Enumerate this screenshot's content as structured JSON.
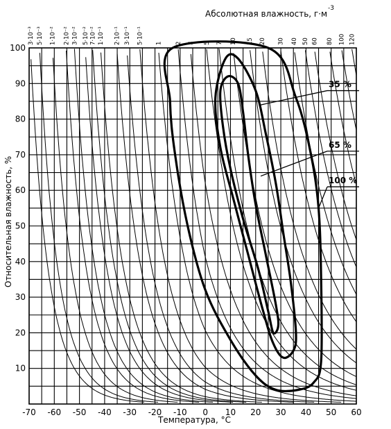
{
  "chart_data": {
    "type": "line",
    "title": "Абсолютная влажность, г·м",
    "title_superscript": "-3",
    "xlabel": "Температура, °C",
    "ylabel": "Относительная влажность, %",
    "xlim": [
      -70,
      60
    ],
    "ylim": [
      0,
      100
    ],
    "x_ticks": [
      "-70",
      "-60",
      "-50",
      "-40",
      "-30",
      "-20",
      "-10",
      "0",
      "10",
      "20",
      "30",
      "40",
      "50",
      "60"
    ],
    "y_ticks": [
      "10",
      "20",
      "30",
      "40",
      "50",
      "60",
      "70",
      "80",
      "90",
      "100"
    ],
    "grid": true,
    "absolute_humidity_lines": [
      {
        "label": "3·10⁻³",
        "value": 0.003
      },
      {
        "label": "5·10⁻³",
        "value": 0.005
      },
      {
        "label": "1·10⁻²",
        "value": 0.01
      },
      {
        "label": "2·10⁻²",
        "value": 0.02
      },
      {
        "label": "3·10⁻²",
        "value": 0.03
      },
      {
        "label": "5·10⁻²",
        "value": 0.05
      },
      {
        "label": "7·10⁻²",
        "value": 0.07
      },
      {
        "label": "1·10⁻¹",
        "value": 0.1
      },
      {
        "label": "2·10⁻¹",
        "value": 0.2
      },
      {
        "label": "3·10⁻¹",
        "value": 0.3
      },
      {
        "label": "5·10⁻¹",
        "value": 0.5
      },
      {
        "label": "1",
        "value": 1
      },
      {
        "label": "2",
        "value": 2
      },
      {
        "label": "3",
        "value": 3
      },
      {
        "label": "5",
        "value": 5
      },
      {
        "label": "7",
        "value": 7
      },
      {
        "label": "10",
        "value": 10
      },
      {
        "label": "15",
        "value": 15
      },
      {
        "label": "20",
        "value": 20
      },
      {
        "label": "30",
        "value": 30
      },
      {
        "label": "40",
        "value": 40
      },
      {
        "label": "50",
        "value": 50
      },
      {
        "label": "60",
        "value": 60
      },
      {
        "label": "80",
        "value": 80
      },
      {
        "label": "100",
        "value": 100
      },
      {
        "label": "120",
        "value": 120
      }
    ],
    "series": [
      {
        "name": "100 %",
        "points": [
          [
            -13,
            100
          ],
          [
            25,
            100
          ],
          [
            36,
            86
          ],
          [
            42,
            70
          ],
          [
            45,
            55
          ],
          [
            46,
            35
          ],
          [
            46,
            12
          ],
          [
            43,
            6
          ],
          [
            37,
            4
          ],
          [
            28,
            4
          ],
          [
            20,
            8
          ],
          [
            10,
            18
          ],
          [
            0,
            32
          ],
          [
            -7,
            50
          ],
          [
            -12,
            70
          ],
          [
            -14,
            85
          ],
          [
            -13,
            100
          ]
        ]
      },
      {
        "name": "65 %",
        "points": [
          [
            8,
            97
          ],
          [
            13,
            97
          ],
          [
            20,
            88
          ],
          [
            24,
            76
          ],
          [
            28,
            62
          ],
          [
            31,
            48
          ],
          [
            34,
            34
          ],
          [
            36,
            20
          ],
          [
            35,
            15
          ],
          [
            31,
            13
          ],
          [
            27,
            17
          ],
          [
            23,
            26
          ],
          [
            17,
            42
          ],
          [
            11,
            58
          ],
          [
            6,
            72
          ],
          [
            4,
            86
          ],
          [
            8,
            97
          ]
        ]
      },
      {
        "name": "35 %",
        "points": [
          [
            9,
            92
          ],
          [
            13,
            90
          ],
          [
            15,
            82
          ],
          [
            17,
            70
          ],
          [
            20,
            56
          ],
          [
            24,
            42
          ],
          [
            28,
            28
          ],
          [
            29,
            22
          ],
          [
            27,
            20
          ],
          [
            25,
            26
          ],
          [
            21,
            38
          ],
          [
            15,
            52
          ],
          [
            10,
            66
          ],
          [
            7,
            78
          ],
          [
            6,
            88
          ],
          [
            9,
            92
          ]
        ]
      }
    ],
    "annotations": [
      {
        "label": "35 %",
        "x": 22,
        "y": 84,
        "to_x": 60,
        "to_y": 88
      },
      {
        "label": "65 %",
        "x": 22,
        "y": 64,
        "to_x": 60,
        "to_y": 71
      },
      {
        "label": "100 %",
        "x": 45,
        "y": 55,
        "to_x": 60,
        "to_y": 61
      }
    ]
  }
}
